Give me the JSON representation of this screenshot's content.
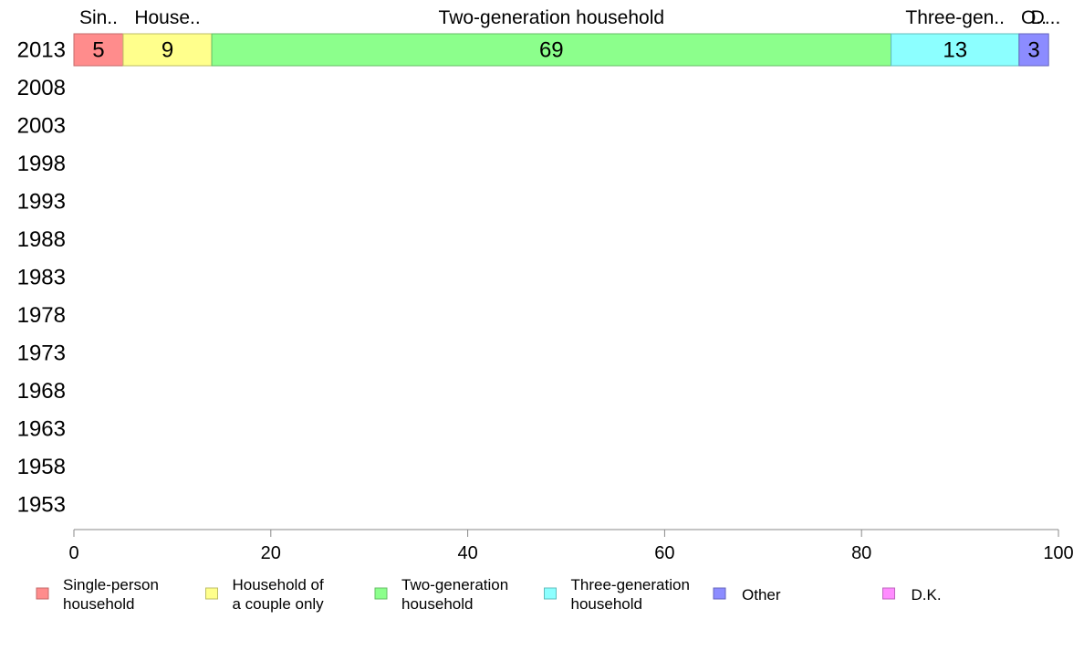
{
  "chart_data": {
    "type": "bar",
    "orientation": "horizontal",
    "stacked": true,
    "categories": [
      "2013",
      "2008",
      "2003",
      "1998",
      "1993",
      "1988",
      "1983",
      "1978",
      "1973",
      "1968",
      "1963",
      "1958",
      "1953"
    ],
    "xlim": [
      0,
      100
    ],
    "xticks": [
      "0",
      "20",
      "40",
      "60",
      "80",
      "100"
    ],
    "grid": false,
    "legend_position": "bottom",
    "series": [
      {
        "name": "Single-person household",
        "legend_lines": [
          "Single-person",
          "household"
        ],
        "top_label": "Sin..",
        "color": "#ff8c8c",
        "stroke": "#c46a6a",
        "values": [
          5,
          null,
          null,
          null,
          null,
          null,
          null,
          null,
          null,
          null,
          null,
          null,
          null
        ]
      },
      {
        "name": "Household of a couple only",
        "legend_lines": [
          "Household of",
          "a couple only"
        ],
        "top_label": "House..",
        "color": "#ffff8c",
        "stroke": "#bdbd66",
        "values": [
          9,
          null,
          null,
          null,
          null,
          null,
          null,
          null,
          null,
          null,
          null,
          null,
          null
        ]
      },
      {
        "name": "Two-generation household",
        "legend_lines": [
          "Two-generation",
          "household"
        ],
        "top_label": "Two-generation household",
        "color": "#8cff8c",
        "stroke": "#66bd66",
        "values": [
          69,
          null,
          null,
          null,
          null,
          null,
          null,
          null,
          null,
          null,
          null,
          null,
          null
        ]
      },
      {
        "name": "Three-generation household",
        "legend_lines": [
          "Three-generation",
          "household"
        ],
        "top_label": "Three-gen..",
        "color": "#8cffff",
        "stroke": "#5fbdbd",
        "values": [
          13,
          null,
          null,
          null,
          null,
          null,
          null,
          null,
          null,
          null,
          null,
          null,
          null
        ]
      },
      {
        "name": "Other",
        "legend_lines": [
          "Other"
        ],
        "top_label": "O..",
        "color": "#8c8cff",
        "stroke": "#6666bd",
        "values": [
          3,
          null,
          null,
          null,
          null,
          null,
          null,
          null,
          null,
          null,
          null,
          null,
          null
        ]
      },
      {
        "name": "D.K.",
        "legend_lines": [
          "D.K."
        ],
        "top_label": "D...",
        "color": "#ff8cff",
        "stroke": "#bd66bd",
        "values": [
          null,
          null,
          null,
          null,
          null,
          null,
          null,
          null,
          null,
          null,
          null,
          null,
          null
        ]
      }
    ]
  }
}
